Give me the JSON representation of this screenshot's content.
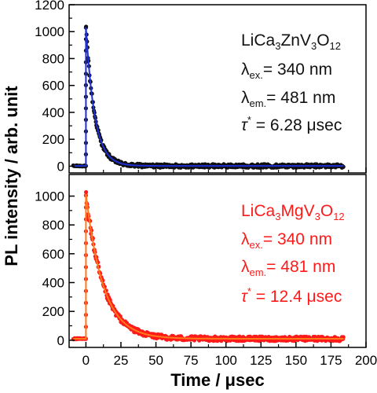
{
  "chart_data": {
    "type": "scatter",
    "xlabel": "Time / μsec",
    "ylabel": "PL intensity / arb. unit",
    "xlim": [
      -12,
      200
    ],
    "x_ticks": [
      0,
      25,
      50,
      75,
      100,
      125,
      150,
      175,
      200
    ],
    "colors": {
      "axis": "#000000",
      "top_fit": "#1f2fd6",
      "top_points": "#111111",
      "bottom_fit": "#ff7a1a",
      "bottom_points": "#ff1a1a"
    },
    "panels": [
      {
        "id": "top",
        "ylim": [
          -50,
          1200
        ],
        "y_ticks": [
          0,
          200,
          400,
          600,
          800,
          1000,
          1200
        ],
        "annotation": {
          "color": "#111111",
          "sample_parts": [
            {
              "t": "LiCa",
              "sub": false
            },
            {
              "t": "3",
              "sub": true
            },
            {
              "t": "ZnV",
              "sub": false
            },
            {
              "t": "3",
              "sub": true
            },
            {
              "t": "O",
              "sub": false
            },
            {
              "t": "12",
              "sub": true
            }
          ],
          "lambda_ex": {
            "sym": "λ",
            "sub": "ex.",
            "value": "= 340 nm"
          },
          "lambda_em": {
            "sym": "λ",
            "sub": "em.",
            "value": "= 481 nm"
          },
          "tau": {
            "sym": "τ",
            "sup": "*",
            "value": " = 6.28 μsec"
          }
        },
        "series": [
          {
            "name": "",
            "kind": "points",
            "t0": 0,
            "peak": 1030,
            "tau": 6.28,
            "baseline": 2,
            "x_start": -9,
            "x_end": 184,
            "step": 0.35,
            "noise": 25
          },
          {
            "name": "",
            "kind": "fit",
            "t0": 0,
            "peak": 1030,
            "tau": 6.28,
            "baseline": 2,
            "x_start": -9,
            "x_end": 184
          }
        ]
      },
      {
        "id": "bottom",
        "ylim": [
          -50,
          1150
        ],
        "y_ticks": [
          0,
          200,
          400,
          600,
          800,
          1000
        ],
        "annotation": {
          "color": "#ff1a1a",
          "sample_parts": [
            {
              "t": "LiCa",
              "sub": false
            },
            {
              "t": "3",
              "sub": true
            },
            {
              "t": "MgV",
              "sub": false
            },
            {
              "t": "3",
              "sub": true
            },
            {
              "t": "O",
              "sub": false
            },
            {
              "t": "12",
              "sub": true
            }
          ],
          "lambda_ex": {
            "sym": "λ",
            "sub": "ex.",
            "value": "= 340 nm"
          },
          "lambda_em": {
            "sym": "λ",
            "sub": "em.",
            "value": "= 481 nm"
          },
          "tau": {
            "sym": "τ",
            "sup": "*",
            "value": " = 12.4 μsec"
          }
        },
        "series": [
          {
            "name": "",
            "kind": "points",
            "t0": 0,
            "peak": 1005,
            "tau": 12.4,
            "baseline": 10,
            "x_start": -9,
            "x_end": 184,
            "step": 0.35,
            "noise": 30
          },
          {
            "name": "",
            "kind": "fit",
            "t0": 0,
            "peak": 1005,
            "tau": 12.4,
            "baseline": 10,
            "x_start": -9,
            "x_end": 184
          }
        ]
      }
    ]
  }
}
